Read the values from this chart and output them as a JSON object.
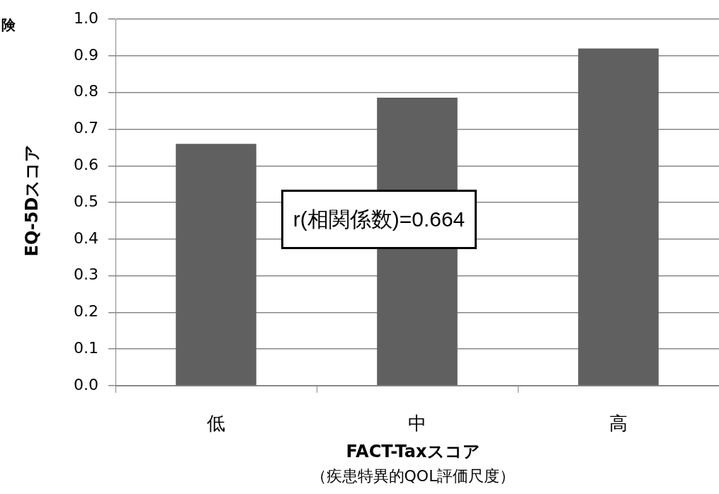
{
  "chart_data": {
    "type": "bar",
    "ylabel": "EQ-5Dスコア",
    "xlabel": "FACT-Taxスコア",
    "subtitle": "（疾患特異的QOL評価尺度）",
    "categories": [
      "低",
      "中",
      "高"
    ],
    "values": [
      0.66,
      0.786,
      0.92
    ],
    "color": "#606060",
    "ylim": [
      0,
      1
    ],
    "yticks": [
      {
        "value": 0,
        "label": "0.0"
      },
      {
        "value": 0.1,
        "label": "0.1"
      },
      {
        "value": 0.2,
        "label": "0.2"
      },
      {
        "value": 0.3,
        "label": "0.3"
      },
      {
        "value": 0.4,
        "label": "0.4"
      },
      {
        "value": 0.5,
        "label": "0.5"
      },
      {
        "value": 0.6,
        "label": "0.6"
      },
      {
        "value": 0.7,
        "label": "0.7"
      },
      {
        "value": 0.8,
        "label": "0.8"
      },
      {
        "value": 0.9,
        "label": "0.9"
      },
      {
        "value": 1,
        "label": "1.0"
      }
    ],
    "grid": "y",
    "legend": false,
    "annotations": [
      "r(相関係数)=0.664",
      "険"
    ]
  }
}
